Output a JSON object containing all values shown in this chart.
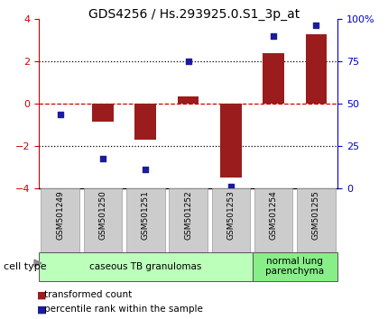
{
  "title": "GDS4256 / Hs.293925.0.S1_3p_at",
  "samples": [
    "GSM501249",
    "GSM501250",
    "GSM501251",
    "GSM501252",
    "GSM501253",
    "GSM501254",
    "GSM501255"
  ],
  "transformed_count": [
    0.0,
    -0.85,
    -1.7,
    0.35,
    -3.5,
    2.4,
    3.3
  ],
  "percentile_rank_left": [
    -0.5,
    -2.6,
    -3.1,
    2.0,
    -3.9,
    3.2,
    3.7
  ],
  "ylim": [
    -4,
    4
  ],
  "left_yticks": [
    -4,
    -2,
    0,
    2,
    4
  ],
  "right_yticks": [
    0,
    25,
    50,
    75,
    100
  ],
  "right_ylim": [
    0,
    100
  ],
  "bar_color": "#9B1C1C",
  "square_color": "#1C1C9B",
  "left_tick_color": "#CC0000",
  "right_tick_color": "#0000CC",
  "hline_color_zero": "#CC0000",
  "hline_color_dotted": "#000000",
  "cell_type_groups": [
    {
      "label": "caseous TB granulomas",
      "start": 0,
      "end": 5,
      "color": "#BBFFBB"
    },
    {
      "label": "normal lung\nparenchyma",
      "start": 5,
      "end": 7,
      "color": "#88EE88"
    }
  ],
  "legend_red_label": "transformed count",
  "legend_blue_label": "percentile rank within the sample",
  "cell_type_label": "cell type",
  "sample_box_color": "#CCCCCC",
  "sample_box_edge": "#999999",
  "title_fontsize": 10,
  "tick_fontsize": 8,
  "sample_fontsize": 6.5,
  "celltype_fontsize": 7.5,
  "legend_fontsize": 7.5
}
